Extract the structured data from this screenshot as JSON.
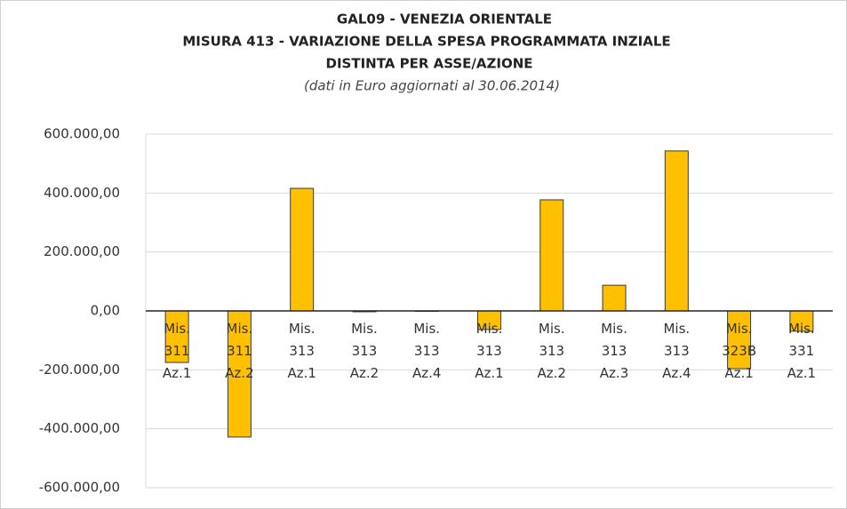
{
  "chart_data": {
    "type": "bar",
    "title": "GAL09 - VENEZIA ORIENTALE",
    "title_lines": [
      "MISURA 413 - VARIAZIONE DELLA SPESA PROGRAMMATA INZIALE",
      "DISTINTA PER ASSE/AZIONE"
    ],
    "subtitle": "(dati in Euro aggiornati al 30.06.2014)",
    "categories": [
      "Mis. 311 Az.1",
      "Mis. 311 Az.2",
      "Mis. 313 Az.1",
      "Mis. 313 Az.2",
      "Mis. 313 Az.4",
      "Mis. 313 Az.1",
      "Mis. 313 Az.2",
      "Mis. 313 Az.3",
      "Mis. 313 Az.4",
      "Mis. 323B Az.1",
      "Mis. 331 Az.1"
    ],
    "values": [
      -175000,
      -428000,
      416000,
      -3000,
      0,
      -63000,
      377000,
      87000,
      543000,
      -196000,
      -69000
    ],
    "color": "#ffc000",
    "ylim": [
      -600000,
      600000
    ],
    "yticks": [
      {
        "value": 600000,
        "label": "600.000,00"
      },
      {
        "value": 400000,
        "label": "400.000,00"
      },
      {
        "value": 200000,
        "label": "200.000,00"
      },
      {
        "value": 0,
        "label": "0,00"
      },
      {
        "value": -200000,
        "label": "-200.000,00"
      },
      {
        "value": -400000,
        "label": "-400.000,00"
      },
      {
        "value": -600000,
        "label": "-600.000,00"
      }
    ],
    "grid": true
  }
}
